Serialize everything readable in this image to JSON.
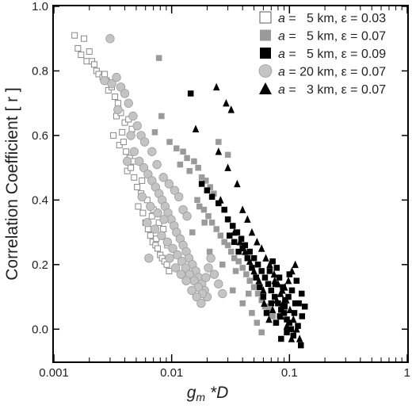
{
  "chart_data": {
    "type": "scatter",
    "title": "",
    "xlabel_main": "g",
    "xlabel_sub": "m",
    "xlabel_rest": " *D",
    "ylabel": "Correlation Coefficient [ r ]",
    "xscale": "log",
    "xlim": [
      0.001,
      1
    ],
    "ylim": [
      -0.1,
      1.0
    ],
    "x_ticks": [
      "0.001",
      "0.01",
      "0.1",
      "1"
    ],
    "x_tick_values": [
      0.001,
      0.01,
      0.1,
      1
    ],
    "y_ticks": [
      "0.0",
      "0.2",
      "0.4",
      "0.6",
      "0.8",
      "1.0"
    ],
    "y_tick_values": [
      0.0,
      0.2,
      0.4,
      0.6,
      0.8,
      1.0
    ],
    "grid": false,
    "legend_position": "top-right",
    "series": [
      {
        "name": "a =   5 km, ε = 0.03",
        "legend_var": "a",
        "legend_rest": " =   5 km, ε = 0.03",
        "marker": "square-open",
        "color": "#888888",
        "points": [
          [
            0.0015,
            0.91
          ],
          [
            0.0018,
            0.9
          ],
          [
            0.0016,
            0.87
          ],
          [
            0.0017,
            0.85
          ],
          [
            0.002,
            0.86
          ],
          [
            0.0019,
            0.83
          ],
          [
            0.0021,
            0.83
          ],
          [
            0.0022,
            0.82
          ],
          [
            0.0023,
            0.8
          ],
          [
            0.0024,
            0.79
          ],
          [
            0.0026,
            0.78
          ],
          [
            0.0028,
            0.77
          ],
          [
            0.0029,
            0.74
          ],
          [
            0.0031,
            0.75
          ],
          [
            0.0033,
            0.72
          ],
          [
            0.0035,
            0.7
          ],
          [
            0.0034,
            0.66
          ],
          [
            0.0037,
            0.67
          ],
          [
            0.004,
            0.64
          ],
          [
            0.0043,
            0.65
          ],
          [
            0.0046,
            0.62
          ],
          [
            0.0032,
            0.6
          ],
          [
            0.0036,
            0.57
          ],
          [
            0.0039,
            0.58
          ],
          [
            0.0041,
            0.55
          ],
          [
            0.0044,
            0.53
          ],
          [
            0.0047,
            0.52
          ],
          [
            0.0042,
            0.49
          ],
          [
            0.0048,
            0.47
          ],
          [
            0.0051,
            0.44
          ],
          [
            0.0055,
            0.42
          ],
          [
            0.0052,
            0.38
          ],
          [
            0.0057,
            0.36
          ],
          [
            0.006,
            0.33
          ],
          [
            0.0063,
            0.31
          ],
          [
            0.0066,
            0.29
          ],
          [
            0.0069,
            0.27
          ],
          [
            0.0073,
            0.26
          ],
          [
            0.0076,
            0.25
          ],
          [
            0.008,
            0.23
          ],
          [
            0.0083,
            0.22
          ],
          [
            0.0087,
            0.21
          ],
          [
            0.0091,
            0.2
          ],
          [
            0.0095,
            0.18
          ],
          [
            0.0078,
            0.33
          ],
          [
            0.007,
            0.37
          ],
          [
            0.0085,
            0.31
          ],
          [
            0.0092,
            0.26
          ],
          [
            0.0045,
            0.5
          ],
          [
            0.0062,
            0.4
          ],
          [
            0.0038,
            0.61
          ],
          [
            0.0027,
            0.79
          ],
          [
            0.0056,
            0.46
          ],
          [
            0.0068,
            0.35
          ],
          [
            0.0074,
            0.28
          ]
        ]
      },
      {
        "name": "a =   5 km, ε = 0.07",
        "legend_var": "a",
        "legend_rest": " =   5 km, ε = 0.07",
        "marker": "square-filled",
        "color": "#9a9a9a",
        "points": [
          [
            0.0078,
            0.84
          ],
          [
            0.0072,
            0.61
          ],
          [
            0.0082,
            0.66
          ],
          [
            0.0096,
            0.58
          ],
          [
            0.011,
            0.56
          ],
          [
            0.0125,
            0.55
          ],
          [
            0.0135,
            0.53
          ],
          [
            0.0118,
            0.51
          ],
          [
            0.0142,
            0.49
          ],
          [
            0.0155,
            0.52
          ],
          [
            0.0168,
            0.5
          ],
          [
            0.018,
            0.47
          ],
          [
            0.0195,
            0.46
          ],
          [
            0.0212,
            0.44
          ],
          [
            0.0228,
            0.42
          ],
          [
            0.0165,
            0.4
          ],
          [
            0.0172,
            0.38
          ],
          [
            0.0188,
            0.37
          ],
          [
            0.0205,
            0.35
          ],
          [
            0.022,
            0.33
          ],
          [
            0.024,
            0.31
          ],
          [
            0.026,
            0.29
          ],
          [
            0.028,
            0.27
          ],
          [
            0.03,
            0.26
          ],
          [
            0.032,
            0.24
          ],
          [
            0.034,
            0.22
          ],
          [
            0.037,
            0.21
          ],
          [
            0.04,
            0.19
          ],
          [
            0.043,
            0.17
          ],
          [
            0.046,
            0.15
          ],
          [
            0.05,
            0.13
          ],
          [
            0.054,
            0.11
          ],
          [
            0.058,
            0.09
          ],
          [
            0.062,
            0.07
          ],
          [
            0.067,
            0.06
          ],
          [
            0.072,
            0.04
          ],
          [
            0.025,
            0.58
          ],
          [
            0.03,
            0.54
          ],
          [
            0.035,
            0.18
          ],
          [
            0.048,
            0.05
          ],
          [
            0.058,
            -0.01
          ],
          [
            0.033,
            0.12
          ],
          [
            0.04,
            0.08
          ],
          [
            0.045,
            0.11
          ],
          [
            0.027,
            0.2
          ],
          [
            0.021,
            0.24
          ],
          [
            0.015,
            0.3
          ],
          [
            0.019,
            0.33
          ],
          [
            0.053,
            0.02
          ]
        ]
      },
      {
        "name": "a =   5 km, ε = 0.09",
        "legend_var": "a",
        "legend_rest": " =   5 km, ε = 0.09",
        "marker": "square-filled",
        "color": "#000000",
        "points": [
          [
            0.0145,
            0.73
          ],
          [
            0.018,
            0.45
          ],
          [
            0.02,
            0.43
          ],
          [
            0.022,
            0.41
          ],
          [
            0.025,
            0.39
          ],
          [
            0.028,
            0.37
          ],
          [
            0.03,
            0.34
          ],
          [
            0.033,
            0.32
          ],
          [
            0.036,
            0.3
          ],
          [
            0.039,
            0.28
          ],
          [
            0.042,
            0.26
          ],
          [
            0.046,
            0.24
          ],
          [
            0.05,
            0.22
          ],
          [
            0.054,
            0.2
          ],
          [
            0.058,
            0.18
          ],
          [
            0.062,
            0.16
          ],
          [
            0.066,
            0.14
          ],
          [
            0.07,
            0.12
          ],
          [
            0.075,
            0.1
          ],
          [
            0.08,
            0.08
          ],
          [
            0.085,
            0.06
          ],
          [
            0.09,
            0.05
          ],
          [
            0.095,
            0.03
          ],
          [
            0.1,
            0.02
          ],
          [
            0.11,
            0.05
          ],
          [
            0.12,
            0.08
          ],
          [
            0.115,
            0.15
          ],
          [
            0.105,
            0.12
          ],
          [
            0.098,
            0.1
          ],
          [
            0.092,
            0.09
          ],
          [
            0.088,
            0.13
          ],
          [
            0.082,
            0.16
          ],
          [
            0.076,
            0.14
          ],
          [
            0.07,
            0.08
          ],
          [
            0.064,
            0.05
          ],
          [
            0.06,
            0.1
          ],
          [
            0.056,
            0.13
          ],
          [
            0.052,
            0.16
          ],
          [
            0.048,
            0.19
          ],
          [
            0.044,
            0.22
          ],
          [
            0.04,
            0.25
          ],
          [
            0.037,
            0.24
          ],
          [
            0.034,
            0.27
          ],
          [
            0.031,
            0.29
          ],
          [
            0.128,
            0.04
          ],
          [
            0.135,
            0.07
          ],
          [
            0.118,
            0.01
          ],
          [
            0.108,
            -0.02
          ],
          [
            0.095,
            -0.01
          ],
          [
            0.085,
            -0.03
          ],
          [
            0.125,
            -0.05
          ],
          [
            0.103,
            0.0
          ],
          [
            0.112,
            0.08
          ],
          [
            0.127,
            0.11
          ],
          [
            0.078,
            0.19
          ],
          [
            0.072,
            0.21
          ],
          [
            0.068,
            0.18
          ],
          [
            0.1,
            0.17
          ],
          [
            0.091,
            0.07
          ],
          [
            0.083,
            0.04
          ],
          [
            0.077,
            0.02
          ]
        ]
      },
      {
        "name": "a = 20 km, ε = 0.07",
        "legend_var": "a",
        "legend_rest": " = 20 km, ε = 0.07",
        "marker": "circle-filled",
        "color": "#c4c4c4",
        "points": [
          [
            0.003,
            0.9
          ],
          [
            0.0027,
            0.77
          ],
          [
            0.0031,
            0.76
          ],
          [
            0.0034,
            0.78
          ],
          [
            0.0037,
            0.75
          ],
          [
            0.004,
            0.73
          ],
          [
            0.0043,
            0.7
          ],
          [
            0.0035,
            0.68
          ],
          [
            0.0047,
            0.66
          ],
          [
            0.0051,
            0.63
          ],
          [
            0.0055,
            0.6
          ],
          [
            0.0059,
            0.58
          ],
          [
            0.0048,
            0.55
          ],
          [
            0.0053,
            0.52
          ],
          [
            0.0058,
            0.5
          ],
          [
            0.0063,
            0.48
          ],
          [
            0.0068,
            0.46
          ],
          [
            0.0073,
            0.44
          ],
          [
            0.0078,
            0.42
          ],
          [
            0.0083,
            0.4
          ],
          [
            0.0088,
            0.38
          ],
          [
            0.0093,
            0.36
          ],
          [
            0.0099,
            0.34
          ],
          [
            0.0105,
            0.32
          ],
          [
            0.011,
            0.3
          ],
          [
            0.0118,
            0.28
          ],
          [
            0.0125,
            0.26
          ],
          [
            0.0133,
            0.24
          ],
          [
            0.014,
            0.22
          ],
          [
            0.015,
            0.2
          ],
          [
            0.016,
            0.18
          ],
          [
            0.017,
            0.16
          ],
          [
            0.018,
            0.14
          ],
          [
            0.019,
            0.12
          ],
          [
            0.02,
            0.1
          ],
          [
            0.0068,
            0.55
          ],
          [
            0.0075,
            0.51
          ],
          [
            0.0085,
            0.47
          ],
          [
            0.0095,
            0.45
          ],
          [
            0.0106,
            0.43
          ],
          [
            0.0115,
            0.41
          ],
          [
            0.0125,
            0.37
          ],
          [
            0.0135,
            0.35
          ],
          [
            0.0062,
            0.33
          ],
          [
            0.0072,
            0.31
          ],
          [
            0.0082,
            0.29
          ],
          [
            0.0092,
            0.27
          ],
          [
            0.0102,
            0.25
          ],
          [
            0.0112,
            0.23
          ],
          [
            0.0122,
            0.21
          ],
          [
            0.0132,
            0.19
          ],
          [
            0.0142,
            0.17
          ],
          [
            0.0155,
            0.15
          ],
          [
            0.0168,
            0.13
          ],
          [
            0.0182,
            0.11
          ],
          [
            0.0056,
            0.41
          ],
          [
            0.0066,
            0.38
          ],
          [
            0.0076,
            0.36
          ],
          [
            0.0086,
            0.34
          ],
          [
            0.0096,
            0.22
          ],
          [
            0.0108,
            0.19
          ],
          [
            0.012,
            0.17
          ],
          [
            0.0133,
            0.15
          ],
          [
            0.0148,
            0.12
          ],
          [
            0.0163,
            0.1
          ],
          [
            0.0178,
            0.08
          ],
          [
            0.0195,
            0.16
          ],
          [
            0.0205,
            0.19
          ],
          [
            0.0215,
            0.22
          ],
          [
            0.023,
            0.17
          ],
          [
            0.025,
            0.14
          ],
          [
            0.027,
            0.11
          ],
          [
            0.0045,
            0.6
          ],
          [
            0.0042,
            0.52
          ],
          [
            0.0064,
            0.22
          ]
        ]
      },
      {
        "name": "a =   3 km, ε = 0.07",
        "legend_var": "a",
        "legend_rest": " =   3 km, ε = 0.07",
        "marker": "triangle-filled",
        "color": "#000000",
        "points": [
          [
            0.024,
            0.75
          ],
          [
            0.029,
            0.7
          ],
          [
            0.032,
            0.68
          ],
          [
            0.016,
            0.62
          ],
          [
            0.025,
            0.55
          ],
          [
            0.03,
            0.5
          ],
          [
            0.036,
            0.45
          ],
          [
            0.026,
            0.4
          ],
          [
            0.04,
            0.37
          ],
          [
            0.044,
            0.34
          ],
          [
            0.048,
            0.3
          ],
          [
            0.053,
            0.27
          ],
          [
            0.058,
            0.25
          ],
          [
            0.063,
            0.22
          ],
          [
            0.068,
            0.2
          ],
          [
            0.074,
            0.17
          ],
          [
            0.08,
            0.14
          ],
          [
            0.087,
            0.12
          ],
          [
            0.094,
            0.09
          ],
          [
            0.101,
            0.06
          ],
          [
            0.108,
            0.03
          ],
          [
            0.115,
            0.0
          ],
          [
            0.122,
            -0.03
          ],
          [
            0.067,
            0.03
          ],
          [
            0.072,
            0.06
          ],
          [
            0.078,
            0.09
          ],
          [
            0.084,
            0.11
          ],
          [
            0.091,
            0.13
          ],
          [
            0.098,
            0.15
          ],
          [
            0.105,
            0.18
          ],
          [
            0.112,
            0.2
          ],
          [
            0.06,
            0.12
          ],
          [
            0.055,
            0.15
          ],
          [
            0.05,
            0.18
          ],
          [
            0.046,
            0.21
          ],
          [
            0.042,
            0.24
          ],
          [
            0.038,
            0.27
          ],
          [
            0.034,
            0.3
          ],
          [
            0.061,
            0.08
          ],
          [
            0.085,
            0.04
          ],
          [
            0.095,
            0.01
          ],
          [
            0.104,
            -0.03
          ],
          [
            0.075,
            0.15
          ],
          [
            0.088,
            0.08
          ]
        ]
      }
    ]
  }
}
